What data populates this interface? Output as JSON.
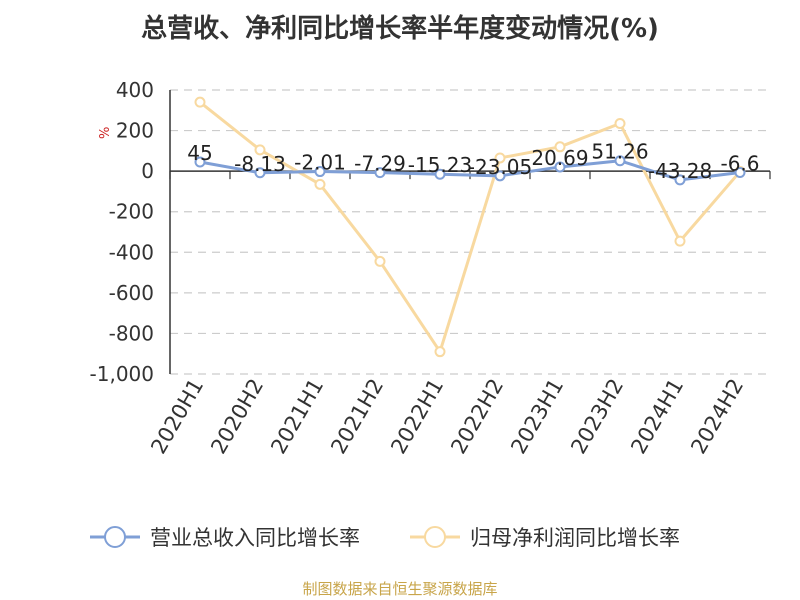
{
  "title": "总营收、净利同比增长率半年度变动情况(%)",
  "source": "制图数据来自恒生聚源数据库",
  "chart_data": {
    "type": "line",
    "categories": [
      "2020H1",
      "2020H2",
      "2021H1",
      "2021H2",
      "2022H1",
      "2022H2",
      "2023H1",
      "2023H2",
      "2024H1",
      "2024H2"
    ],
    "ylim": [
      -1000,
      400
    ],
    "yticks": [
      400,
      200,
      0,
      -200,
      -400,
      -600,
      -800,
      -1000
    ],
    "ytick_labels": [
      "400",
      "200",
      "0",
      "-200",
      "-400",
      "-600",
      "-800",
      "-1,000"
    ],
    "unit_label": "%",
    "grid": true,
    "legend_position": "bottom",
    "series": [
      {
        "name": "营业总收入同比增长率",
        "color": "#7f9fd6",
        "values": [
          45,
          -8.13,
          -2.01,
          -7.29,
          -15.23,
          -23.05,
          20.69,
          51.26,
          -43.28,
          -6.6
        ],
        "labels": [
          "45",
          "-8.13",
          "-2.01",
          "-7.29",
          "-15.23",
          "-23.05",
          "20.69",
          "51.26",
          "-43.28",
          "-6.6"
        ]
      },
      {
        "name": "归母净利润同比增长率",
        "color": "#f8d9a0",
        "values": [
          340,
          105,
          -65,
          -445,
          -890,
          65,
          120,
          235,
          -345,
          -2
        ]
      }
    ]
  }
}
